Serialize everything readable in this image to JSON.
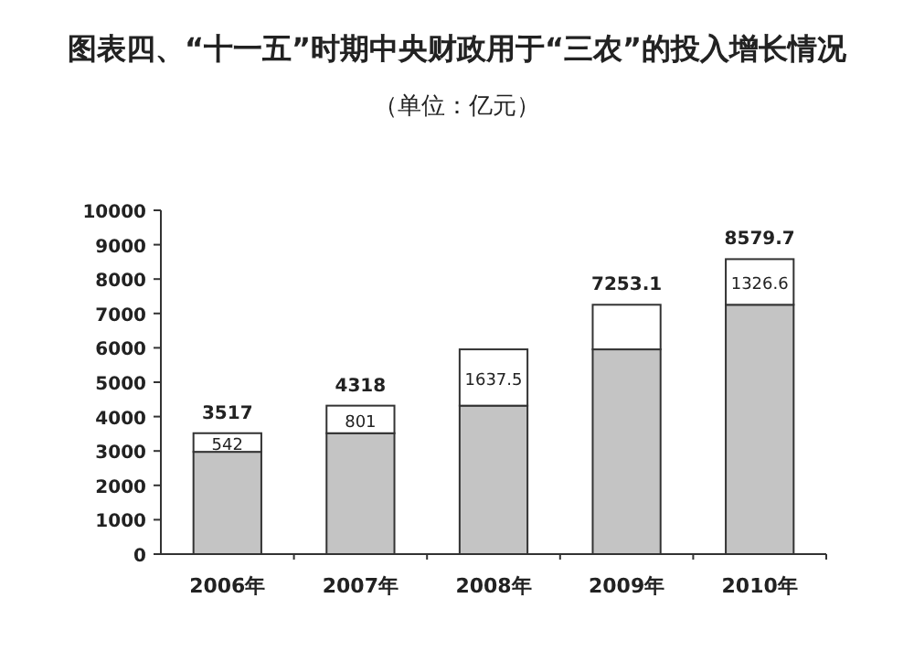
{
  "chart_data": {
    "type": "bar",
    "title": "图表四、“十一五”时期中央财政用于“三农”的投入增长情况",
    "subtitle": "（单位：亿元）",
    "categories": [
      "2006年",
      "2007年",
      "2008年",
      "2009年",
      "2010年"
    ],
    "stacked": true,
    "series": [
      {
        "color": "#c4c4c4",
        "values": [
          2975,
          3517,
          4318,
          5955.5,
          7253.1
        ]
      },
      {
        "color": "#ffffff",
        "values": [
          542,
          801,
          1637.5,
          1297.6,
          1326.6
        ],
        "value_labels": [
          "542",
          "801",
          "1637.5",
          null,
          "1326.6"
        ]
      }
    ],
    "totals": [
      "3517",
      "4318",
      null,
      "7253.1",
      "8579.7"
    ],
    "ylim": [
      0,
      10000
    ],
    "yticks": [
      0,
      1000,
      2000,
      3000,
      4000,
      5000,
      6000,
      7000,
      8000,
      9000,
      10000
    ],
    "grid": false
  }
}
